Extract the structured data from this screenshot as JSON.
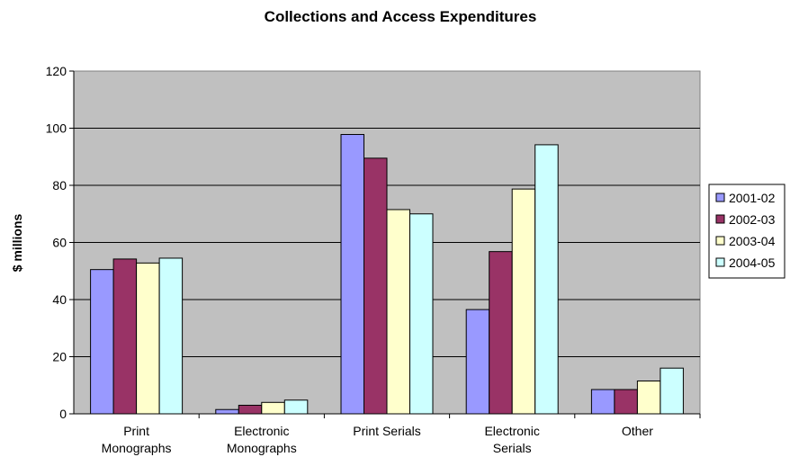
{
  "chart_data": {
    "type": "bar",
    "title": "Collections and Access Expenditures",
    "xlabel": "",
    "ylabel": "$ millions",
    "ylim": [
      0,
      120
    ],
    "yticks": [
      0,
      20,
      40,
      60,
      80,
      100,
      120
    ],
    "grid": true,
    "legend_position": "right",
    "plot_background": "#c0c0c0",
    "categories": [
      [
        "Print",
        "Monographs"
      ],
      [
        "Electronic",
        "Monographs"
      ],
      [
        "Print Serials"
      ],
      [
        "Electronic",
        "Serials"
      ],
      [
        "Other"
      ]
    ],
    "series": [
      {
        "name": "2001-02",
        "color": "#9999ff",
        "values": [
          50.5,
          1.5,
          97.8,
          36.5,
          8.5
        ]
      },
      {
        "name": "2002-03",
        "color": "#993366",
        "values": [
          54.2,
          3,
          89.5,
          56.8,
          8.5
        ]
      },
      {
        "name": "2003-04",
        "color": "#ffffcc",
        "values": [
          52.8,
          4,
          71.5,
          78.7,
          11.5
        ]
      },
      {
        "name": "2004-05",
        "color": "#ccffff",
        "values": [
          54.5,
          4.8,
          70,
          94.2,
          16
        ]
      }
    ]
  }
}
